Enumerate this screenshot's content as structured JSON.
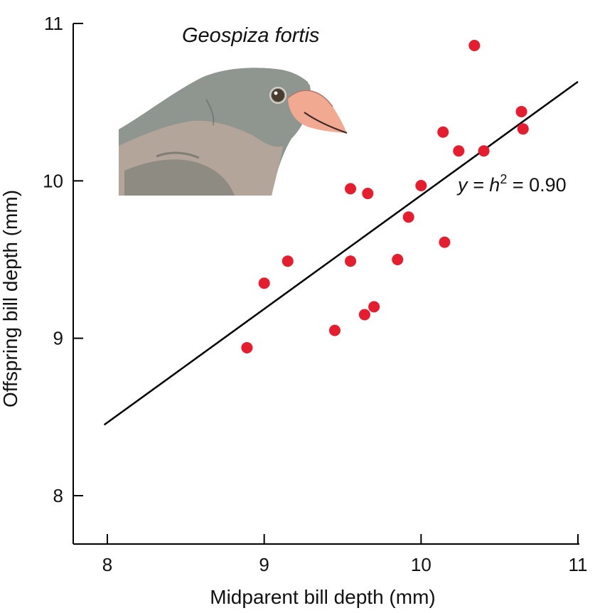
{
  "chart_data": {
    "type": "scatter",
    "title": "Geospiza fortis",
    "xlabel": "Midparent bill depth (mm)",
    "ylabel": "Offspring bill depth (mm)",
    "xlim": [
      7.8,
      11
    ],
    "ylim": [
      7.7,
      11
    ],
    "xticks": [
      8,
      9,
      10,
      11
    ],
    "yticks": [
      8,
      9,
      10,
      11
    ],
    "xtick_labels": [
      "8",
      "9",
      "10",
      "11"
    ],
    "ytick_labels": [
      "8",
      "9",
      "10",
      "11"
    ],
    "grid": false,
    "points": [
      {
        "x": 8.89,
        "y": 8.94
      },
      {
        "x": 9.0,
        "y": 9.35
      },
      {
        "x": 9.15,
        "y": 9.49
      },
      {
        "x": 9.45,
        "y": 9.05
      },
      {
        "x": 9.55,
        "y": 9.95
      },
      {
        "x": 9.55,
        "y": 9.49
      },
      {
        "x": 9.64,
        "y": 9.15
      },
      {
        "x": 9.66,
        "y": 9.92
      },
      {
        "x": 9.7,
        "y": 9.2
      },
      {
        "x": 9.85,
        "y": 9.5
      },
      {
        "x": 9.92,
        "y": 9.77
      },
      {
        "x": 10.0,
        "y": 9.97
      },
      {
        "x": 10.14,
        "y": 10.31
      },
      {
        "x": 10.15,
        "y": 9.61
      },
      {
        "x": 10.24,
        "y": 10.19
      },
      {
        "x": 10.34,
        "y": 10.86
      },
      {
        "x": 10.4,
        "y": 10.19
      },
      {
        "x": 10.64,
        "y": 10.44
      },
      {
        "x": 10.65,
        "y": 10.33
      }
    ],
    "trendline": {
      "x1": 7.98,
      "y1": 8.45,
      "x2": 11.0,
      "y2": 10.63
    },
    "annotation": {
      "prefix": "y = ",
      "symbol": "h",
      "superscript": "2",
      "suffix": " = 0.90"
    },
    "colors": {
      "points": "#e51d2e",
      "line": "#000000",
      "axis": "#000000"
    }
  },
  "illustration": {
    "icon": "finch-head-icon"
  }
}
